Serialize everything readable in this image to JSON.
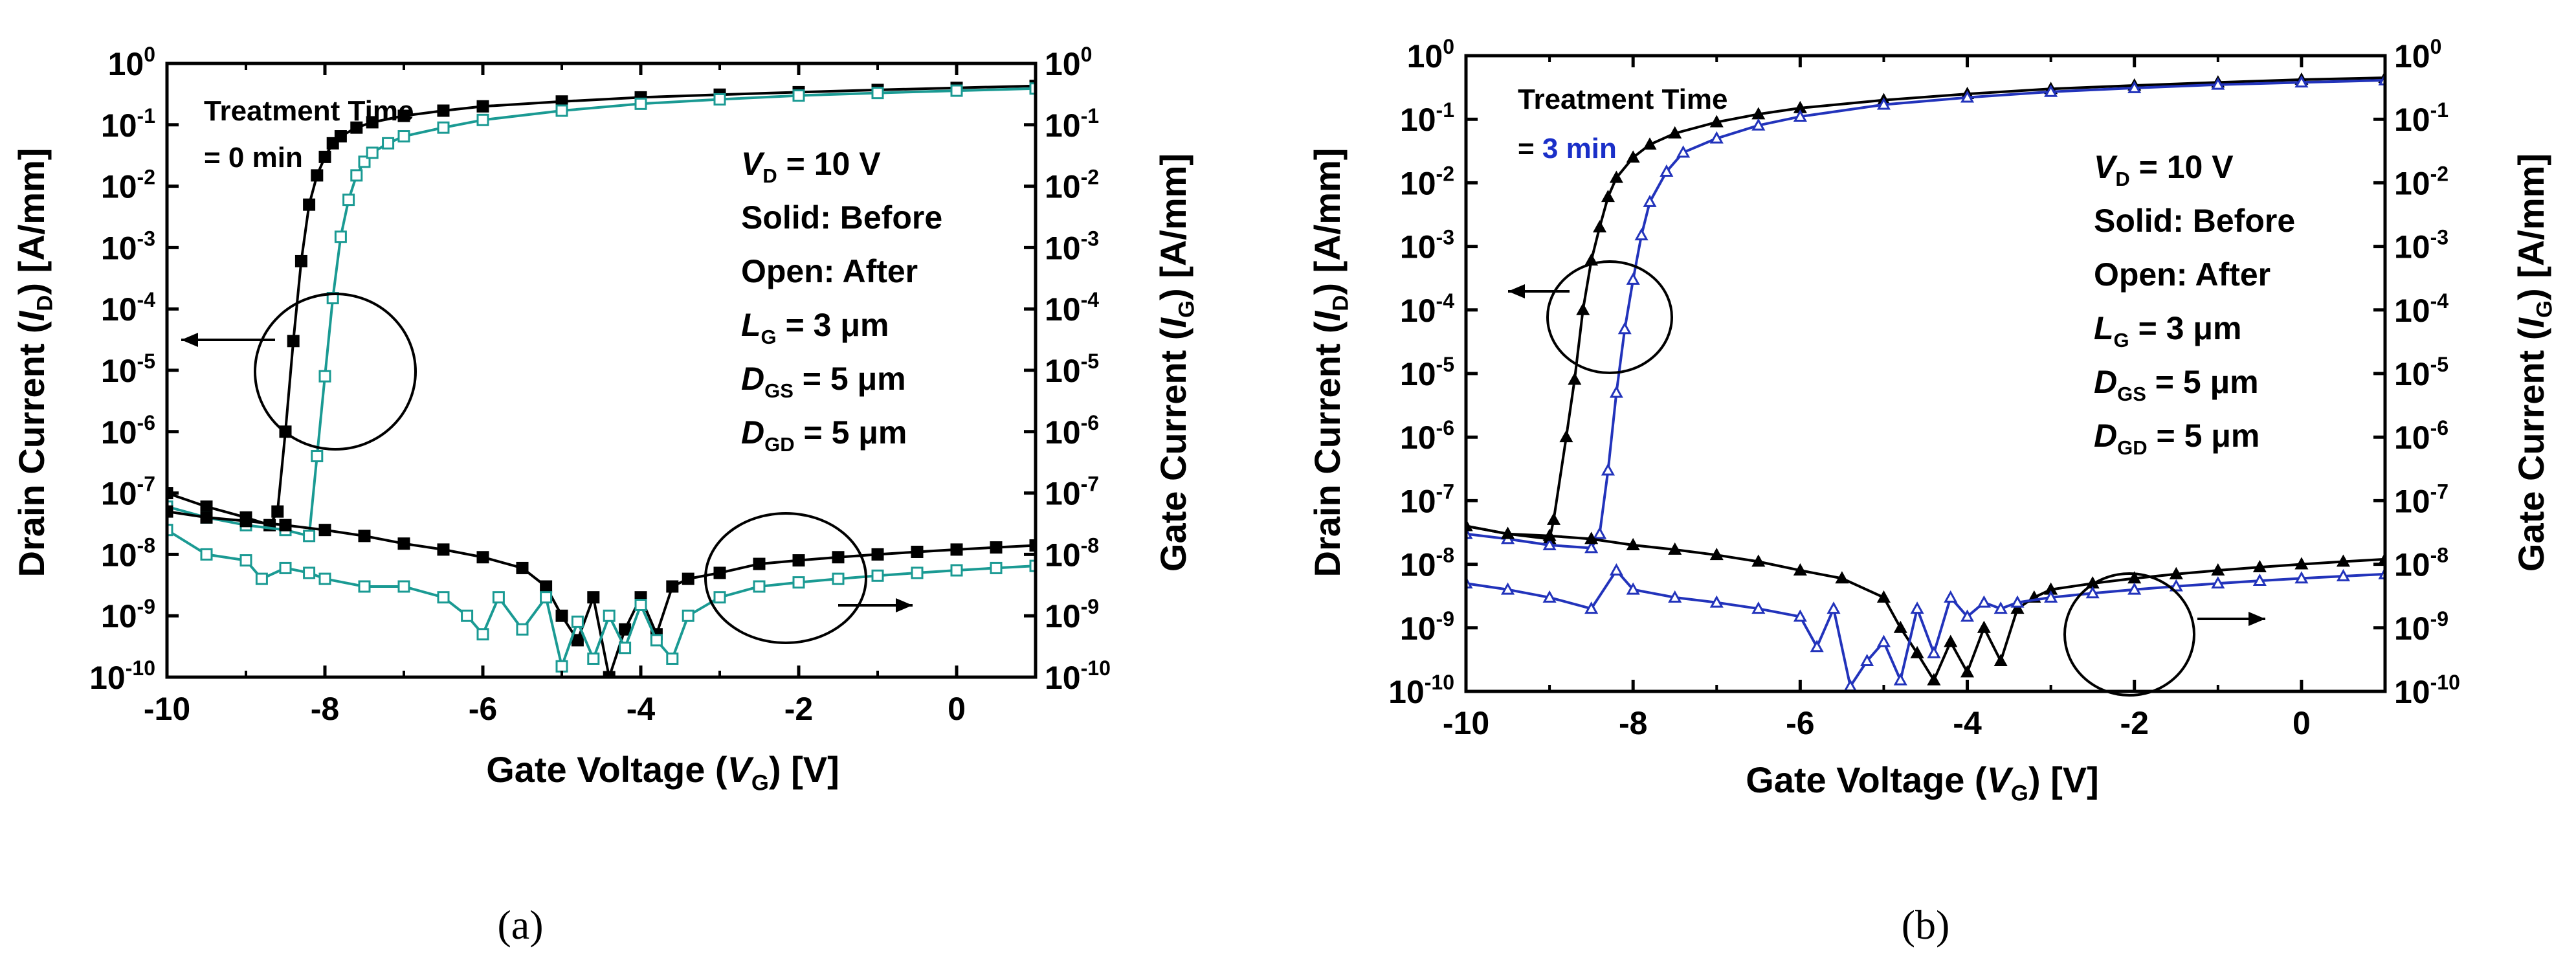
{
  "chart_data": [
    {
      "type": "line",
      "panel_label": "(a)",
      "xlabel": {
        "pre": "Gate Voltage (",
        "var": "V",
        "sub": "G",
        "post": ") [V]"
      },
      "ylabel_left": {
        "pre": "Drain Current (",
        "var": "I",
        "sub": "D",
        "post": ") [A/mm]"
      },
      "ylabel_right": {
        "pre": "Gate Current (",
        "var": "I",
        "sub": "G",
        "post": ") [A/mm]"
      },
      "xlim": [
        -10,
        1
      ],
      "ylim": [
        1e-10,
        1
      ],
      "yscale": "log",
      "xticks": [
        -10,
        -8,
        -6,
        -4,
        -2,
        0
      ],
      "xtick_labels": [
        "-10",
        "-8",
        "-6",
        "-4",
        "-2",
        "0"
      ],
      "yticks": [
        1e-10,
        1e-09,
        1e-08,
        1e-07,
        1e-06,
        1e-05,
        0.0001,
        0.001,
        0.01,
        0.1,
        1
      ],
      "ytick_exponents": [
        "-10",
        "-9",
        "-8",
        "-7",
        "-6",
        "-5",
        "-4",
        "-3",
        "-2",
        "-1",
        "0"
      ],
      "ytick_base": "10",
      "after_color": "#1a9a93",
      "before_color": "#000000",
      "treatment": {
        "line1": "Treatment Time",
        "prefix": "= ",
        "value": "0 min"
      },
      "treatment_value_color": "#000000",
      "conditions": [
        {
          "var": "V",
          "sub": "D",
          "rest": " = 10 V"
        },
        {
          "var": "",
          "sub": "",
          "rest": "Solid: Before"
        },
        {
          "var": "",
          "sub": "",
          "rest": "Open: After"
        },
        {
          "var": "L",
          "sub": "G",
          "rest": " = 3 μm"
        },
        {
          "var": "D",
          "sub": "GS",
          "rest": " = 5 μm"
        },
        {
          "var": "D",
          "sub": "GD",
          "rest": " = 5 μm"
        }
      ],
      "series": [
        {
          "name": "Before",
          "quantity": "ID",
          "marker": "filled-square",
          "x": [
            -10,
            -9.5,
            -9.0,
            -8.7,
            -8.6,
            -8.5,
            -8.4,
            -8.3,
            -8.2,
            -8.1,
            -8.0,
            -7.9,
            -7.8,
            -7.6,
            -7.4,
            -7.0,
            -6.5,
            -6.0,
            -5.0,
            -4.0,
            -3.0,
            -2.0,
            -1.0,
            0,
            1
          ],
          "y": [
            1e-07,
            6e-08,
            4e-08,
            3e-08,
            5e-08,
            1e-06,
            3e-05,
            0.0006,
            0.005,
            0.015,
            0.03,
            0.05,
            0.065,
            0.09,
            0.11,
            0.14,
            0.17,
            0.2,
            0.24,
            0.28,
            0.31,
            0.34,
            0.37,
            0.4,
            0.43
          ]
        },
        {
          "name": "After",
          "quantity": "ID",
          "marker": "open-square",
          "x": [
            -10,
            -9.5,
            -9.0,
            -8.5,
            -8.2,
            -8.1,
            -8.0,
            -7.9,
            -7.8,
            -7.7,
            -7.6,
            -7.5,
            -7.4,
            -7.2,
            -7.0,
            -6.5,
            -6.0,
            -5.0,
            -4.0,
            -3.0,
            -2.0,
            -1.0,
            0,
            1
          ],
          "y": [
            6e-08,
            4e-08,
            3e-08,
            2.5e-08,
            2e-08,
            4e-07,
            8e-06,
            0.00015,
            0.0015,
            0.006,
            0.015,
            0.025,
            0.035,
            0.05,
            0.065,
            0.09,
            0.12,
            0.17,
            0.22,
            0.26,
            0.3,
            0.33,
            0.36,
            0.39
          ]
        },
        {
          "name": "Before",
          "quantity": "IG",
          "marker": "filled-square",
          "x": [
            -10,
            -9.5,
            -9.0,
            -8.5,
            -8.0,
            -7.5,
            -7.0,
            -6.5,
            -6.0,
            -5.5,
            -5.2,
            -5.0,
            -4.8,
            -4.6,
            -4.4,
            -4.2,
            -4.0,
            -3.8,
            -3.6,
            -3.4,
            -3.0,
            -2.5,
            -2.0,
            -1.5,
            -1.0,
            -0.5,
            0,
            0.5,
            1
          ],
          "y": [
            5e-08,
            4e-08,
            3.5e-08,
            3e-08,
            2.5e-08,
            2e-08,
            1.5e-08,
            1.2e-08,
            9e-09,
            6e-09,
            3e-09,
            1e-09,
            4e-10,
            2e-09,
            1e-10,
            6e-10,
            2e-09,
            5e-10,
            3e-09,
            4e-09,
            5e-09,
            7e-09,
            8e-09,
            9e-09,
            1e-08,
            1.1e-08,
            1.2e-08,
            1.3e-08,
            1.4e-08
          ]
        },
        {
          "name": "After",
          "quantity": "IG",
          "marker": "open-square",
          "x": [
            -10,
            -9.5,
            -9.0,
            -8.8,
            -8.5,
            -8.2,
            -8.0,
            -7.5,
            -7.0,
            -6.5,
            -6.2,
            -6.0,
            -5.8,
            -5.5,
            -5.2,
            -5.0,
            -4.8,
            -4.6,
            -4.4,
            -4.2,
            -4.0,
            -3.8,
            -3.6,
            -3.4,
            -3.0,
            -2.5,
            -2.0,
            -1.5,
            -1.0,
            -0.5,
            0,
            0.5,
            1
          ],
          "y": [
            2.5e-08,
            1e-08,
            8e-09,
            4e-09,
            6e-09,
            5e-09,
            4e-09,
            3e-09,
            3e-09,
            2e-09,
            1e-09,
            5e-10,
            2e-09,
            6e-10,
            2e-09,
            1.5e-10,
            8e-10,
            2e-10,
            1e-09,
            3e-10,
            1.5e-09,
            4e-10,
            2e-10,
            1e-09,
            2e-09,
            3e-09,
            3.5e-09,
            4e-09,
            4.5e-09,
            5e-09,
            5.5e-09,
            6e-09,
            6.5e-09
          ]
        }
      ]
    },
    {
      "type": "line",
      "panel_label": "(b)",
      "xlabel": {
        "pre": "Gate Voltage (",
        "var": "V",
        "sub": "G",
        "post": ") [V]"
      },
      "ylabel_left": {
        "pre": "Drain Current (",
        "var": "I",
        "sub": "D",
        "post": ") [A/mm]"
      },
      "ylabel_right": {
        "pre": "Gate Current (",
        "var": "I",
        "sub": "G",
        "post": ") [A/mm]"
      },
      "xlim": [
        -10,
        1
      ],
      "ylim": [
        1e-10,
        1
      ],
      "yscale": "log",
      "xticks": [
        -10,
        -8,
        -6,
        -4,
        -2,
        0
      ],
      "xtick_labels": [
        "-10",
        "-8",
        "-6",
        "-4",
        "-2",
        "0"
      ],
      "yticks": [
        1e-10,
        1e-09,
        1e-08,
        1e-07,
        1e-06,
        1e-05,
        0.0001,
        0.001,
        0.01,
        0.1,
        1
      ],
      "ytick_exponents": [
        "-10",
        "-9",
        "-8",
        "-7",
        "-6",
        "-5",
        "-4",
        "-3",
        "-2",
        "-1",
        "0"
      ],
      "ytick_base": "10",
      "after_color": "#2233bb",
      "before_color": "#000000",
      "treatment": {
        "line1": "Treatment Time",
        "prefix": "= ",
        "value": "3 min"
      },
      "treatment_value_color": "#1a2fc8",
      "conditions": [
        {
          "var": "V",
          "sub": "D",
          "rest": " = 10 V"
        },
        {
          "var": "",
          "sub": "",
          "rest": "Solid: Before"
        },
        {
          "var": "",
          "sub": "",
          "rest": "Open: After"
        },
        {
          "var": "L",
          "sub": "G",
          "rest": " = 3 μm"
        },
        {
          "var": "D",
          "sub": "GS",
          "rest": " = 5 μm"
        },
        {
          "var": "D",
          "sub": "GD",
          "rest": " = 5 μm"
        }
      ],
      "series": [
        {
          "name": "Before",
          "quantity": "ID",
          "marker": "filled-triangle",
          "x": [
            -10,
            -9.5,
            -9.0,
            -8.95,
            -8.8,
            -8.7,
            -8.6,
            -8.5,
            -8.4,
            -8.3,
            -8.2,
            -8.0,
            -7.8,
            -7.5,
            -7.0,
            -6.5,
            -6.0,
            -5.0,
            -4.0,
            -3.0,
            -2.0,
            -1.0,
            0,
            1
          ],
          "y": [
            4e-08,
            3e-08,
            2.5e-08,
            5e-08,
            1e-06,
            8e-06,
            0.0001,
            0.0006,
            0.002,
            0.006,
            0.012,
            0.025,
            0.04,
            0.06,
            0.09,
            0.12,
            0.15,
            0.2,
            0.25,
            0.3,
            0.34,
            0.38,
            0.42,
            0.45
          ]
        },
        {
          "name": "After",
          "quantity": "ID",
          "marker": "open-triangle",
          "x": [
            -10,
            -9.5,
            -9.0,
            -8.5,
            -8.4,
            -8.3,
            -8.2,
            -8.1,
            -8.0,
            -7.9,
            -7.8,
            -7.6,
            -7.4,
            -7.0,
            -6.5,
            -6.0,
            -5.0,
            -4.0,
            -3.0,
            -2.0,
            -1.0,
            0,
            1
          ],
          "y": [
            3e-08,
            2.5e-08,
            2e-08,
            1.8e-08,
            3e-08,
            3e-07,
            5e-06,
            5e-05,
            0.0003,
            0.0015,
            0.005,
            0.015,
            0.03,
            0.05,
            0.08,
            0.11,
            0.17,
            0.22,
            0.27,
            0.31,
            0.35,
            0.38,
            0.41
          ]
        },
        {
          "name": "Before",
          "quantity": "IG",
          "marker": "filled-triangle",
          "x": [
            -10,
            -9.5,
            -9.0,
            -8.5,
            -8.0,
            -7.5,
            -7.0,
            -6.5,
            -6.0,
            -5.5,
            -5.0,
            -4.8,
            -4.6,
            -4.4,
            -4.2,
            -4.0,
            -3.8,
            -3.6,
            -3.4,
            -3.2,
            -3.0,
            -2.5,
            -2.0,
            -1.5,
            -1.0,
            -0.5,
            0,
            0.5,
            1
          ],
          "y": [
            4e-08,
            3e-08,
            2.8e-08,
            2.5e-08,
            2e-08,
            1.7e-08,
            1.4e-08,
            1.1e-08,
            8e-09,
            6e-09,
            3e-09,
            1e-09,
            4e-10,
            1.5e-10,
            6e-10,
            2e-10,
            1e-09,
            3e-10,
            2e-09,
            3e-09,
            4e-09,
            5e-09,
            6e-09,
            7e-09,
            8e-09,
            9e-09,
            1e-08,
            1.1e-08,
            1.2e-08
          ]
        },
        {
          "name": "After",
          "quantity": "IG",
          "marker": "open-triangle",
          "x": [
            -10,
            -9.5,
            -9.0,
            -8.5,
            -8.2,
            -8.0,
            -7.5,
            -7.0,
            -6.5,
            -6.0,
            -5.8,
            -5.6,
            -5.4,
            -5.2,
            -5.0,
            -4.8,
            -4.6,
            -4.4,
            -4.2,
            -4.0,
            -3.8,
            -3.6,
            -3.4,
            -3.0,
            -2.5,
            -2.0,
            -1.5,
            -1.0,
            -0.5,
            0,
            0.5,
            1
          ],
          "y": [
            5e-09,
            4e-09,
            3e-09,
            2e-09,
            8e-09,
            4e-09,
            3e-09,
            2.5e-09,
            2e-09,
            1.5e-09,
            5e-10,
            2e-09,
            1.2e-10,
            3e-10,
            6e-10,
            1.5e-10,
            2e-09,
            4e-10,
            3e-09,
            1.5e-09,
            2.5e-09,
            2e-09,
            2.5e-09,
            3e-09,
            3.5e-09,
            4e-09,
            4.5e-09,
            5e-09,
            5.5e-09,
            6e-09,
            6.5e-09,
            7e-09
          ]
        }
      ]
    }
  ]
}
